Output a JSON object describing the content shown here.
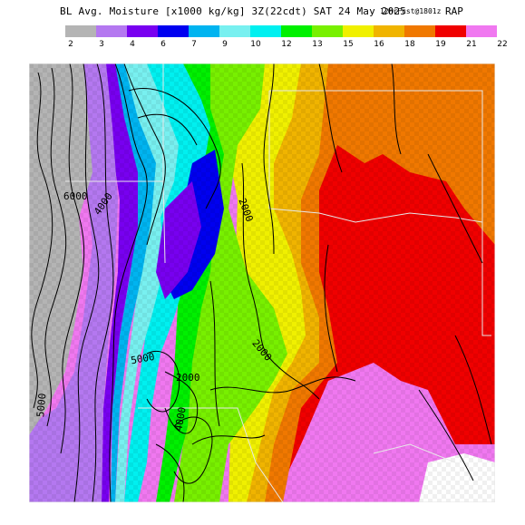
{
  "title": {
    "main": "BL Avg. Moisture [x1000 kg/kg] 3Z(22cdt) SAT 24 May 2025",
    "run": "12hrFcst@1801z",
    "model": "RAP"
  },
  "legend": {
    "labels": [
      "2",
      "3",
      "4",
      "6",
      "7",
      "9",
      "10",
      "12",
      "13",
      "15",
      "16",
      "18",
      "19",
      "21",
      "22"
    ],
    "colors": [
      "#b4b4b4",
      "#b478f0",
      "#7800f0",
      "#0000f0",
      "#00b4f0",
      "#78f0f0",
      "#00f0f0",
      "#00f000",
      "#78f000",
      "#f0f000",
      "#f0b400",
      "#f07800",
      "#f00000",
      "#f078f0"
    ]
  },
  "map": {
    "contour_labels": [
      "6000",
      "4000",
      "2000",
      "2000",
      "5000",
      "2000",
      "4000",
      "5000"
    ]
  }
}
